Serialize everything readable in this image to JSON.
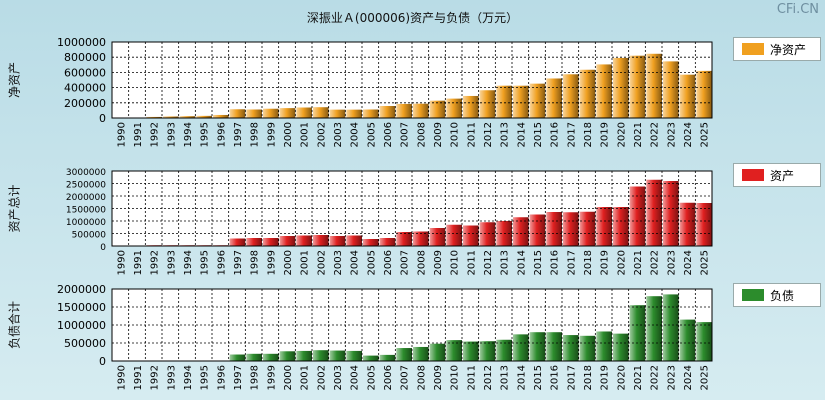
{
  "title": "深振业Ａ(000006)资产与负债（万元）",
  "watermark": "CFi.CN",
  "chart_data": [
    {
      "type": "bar",
      "ylabel": "净资产",
      "legend": "净资产",
      "color": "#f0a020",
      "categories": [
        "1990",
        "1991",
        "1992",
        "1993",
        "1994",
        "1995",
        "1996",
        "1997",
        "1998",
        "1999",
        "2000",
        "2001",
        "2002",
        "2003",
        "2004",
        "2005",
        "2006",
        "2007",
        "2008",
        "2009",
        "2010",
        "2011",
        "2012",
        "2013",
        "2014",
        "2015",
        "2016",
        "2017",
        "2018",
        "2019",
        "2020",
        "2021",
        "2022",
        "2023",
        "2024",
        "2025"
      ],
      "values": [
        4000,
        6000,
        14000,
        20000,
        24000,
        28000,
        40000,
        115000,
        112000,
        122000,
        130000,
        138000,
        142000,
        110000,
        110000,
        112000,
        158000,
        185000,
        188000,
        228000,
        255000,
        290000,
        365000,
        425000,
        425000,
        452000,
        520000,
        575000,
        635000,
        705000,
        790000,
        820000,
        845000,
        745000,
        570000,
        620000
      ],
      "yticks": [
        0,
        200000,
        400000,
        600000,
        800000,
        1000000
      ],
      "ylim": [
        0,
        1000000
      ]
    },
    {
      "type": "bar",
      "ylabel": "资产总计",
      "legend": "资产",
      "color": "#e02020",
      "categories": [
        "1990",
        "1991",
        "1992",
        "1993",
        "1994",
        "1995",
        "1996",
        "1997",
        "1998",
        "1999",
        "2000",
        "2001",
        "2002",
        "2003",
        "2004",
        "2005",
        "2006",
        "2007",
        "2008",
        "2009",
        "2010",
        "2011",
        "2012",
        "2013",
        "2014",
        "2015",
        "2016",
        "2017",
        "2018",
        "2019",
        "2020",
        "2021",
        "2022",
        "2023",
        "2024",
        "2025"
      ],
      "values": [
        15000,
        20000,
        30000,
        30000,
        30000,
        30000,
        30000,
        300000,
        320000,
        320000,
        400000,
        420000,
        440000,
        400000,
        420000,
        280000,
        320000,
        560000,
        580000,
        720000,
        850000,
        820000,
        950000,
        1000000,
        1150000,
        1260000,
        1360000,
        1350000,
        1370000,
        1560000,
        1560000,
        2380000,
        2650000,
        2600000,
        1730000,
        1720000
      ],
      "yticks": [
        0,
        500000,
        1000000,
        1500000,
        2000000,
        2500000,
        3000000
      ],
      "ylim": [
        0,
        3000000
      ]
    },
    {
      "type": "bar",
      "ylabel": "负债合计",
      "legend": "负债",
      "color": "#2c8c2c",
      "categories": [
        "1990",
        "1991",
        "1992",
        "1993",
        "1994",
        "1995",
        "1996",
        "1997",
        "1998",
        "1999",
        "2000",
        "2001",
        "2002",
        "2003",
        "2004",
        "2005",
        "2006",
        "2007",
        "2008",
        "2009",
        "2010",
        "2011",
        "2012",
        "2013",
        "2014",
        "2015",
        "2016",
        "2017",
        "2018",
        "2019",
        "2020",
        "2021",
        "2022",
        "2023",
        "2024",
        "2025"
      ],
      "values": [
        8000,
        12000,
        14000,
        14000,
        14000,
        14000,
        14000,
        180000,
        200000,
        200000,
        270000,
        280000,
        300000,
        290000,
        280000,
        150000,
        170000,
        360000,
        390000,
        480000,
        580000,
        540000,
        550000,
        590000,
        740000,
        800000,
        800000,
        720000,
        700000,
        820000,
        760000,
        1550000,
        1800000,
        1850000,
        1150000,
        1080000
      ],
      "yticks": [
        0,
        500000,
        1000000,
        1500000,
        2000000
      ],
      "ylim": [
        0,
        2000000
      ]
    }
  ]
}
